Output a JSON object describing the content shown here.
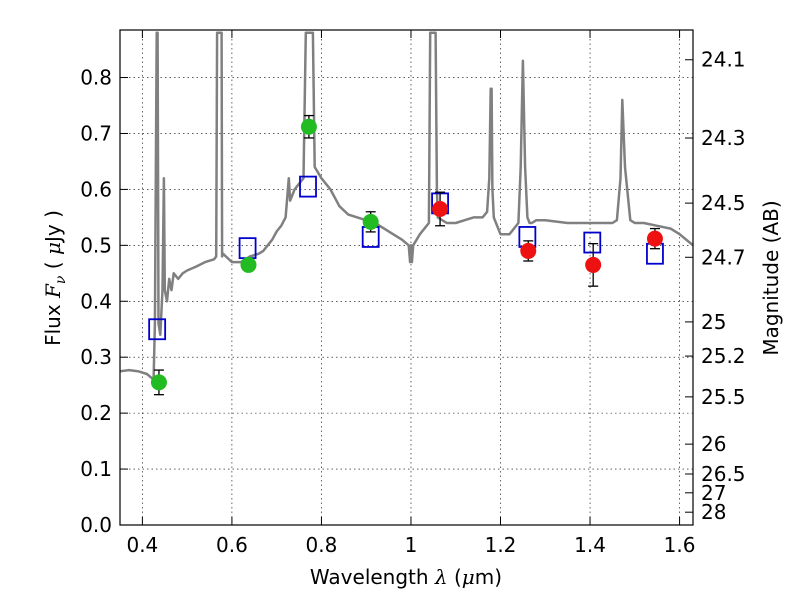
{
  "chart_data": {
    "type": "scatter",
    "xlabel": {
      "prefix": "Wavelength  ",
      "symbol": "λ",
      "suffix": " (",
      "unit_symbol": "μ",
      "unit_rest": "m)"
    },
    "ylabel": {
      "prefix": "Flux  ",
      "symbol": "F",
      "subscript": "ν",
      "suffix": "  ( ",
      "unit_symbol": "μ",
      "unit_rest": "Jy )"
    },
    "y2label": "Magnitude (AB)",
    "xlim": [
      0.35,
      1.63
    ],
    "ylim": [
      0.0,
      0.885
    ],
    "grid": true,
    "x_ticks": [
      {
        "value": 0.4,
        "label": "0.4"
      },
      {
        "value": 0.6,
        "label": "0.6"
      },
      {
        "value": 0.8,
        "label": "0.8"
      },
      {
        "value": 1.0,
        "label": "1"
      },
      {
        "value": 1.2,
        "label": "1.2"
      },
      {
        "value": 1.4,
        "label": "1.4"
      },
      {
        "value": 1.6,
        "label": "1.6"
      }
    ],
    "y_ticks": [
      {
        "value": 0.0,
        "label": "0.0"
      },
      {
        "value": 0.1,
        "label": "0.1"
      },
      {
        "value": 0.2,
        "label": "0.2"
      },
      {
        "value": 0.3,
        "label": "0.3"
      },
      {
        "value": 0.4,
        "label": "0.4"
      },
      {
        "value": 0.5,
        "label": "0.5"
      },
      {
        "value": 0.6,
        "label": "0.6"
      },
      {
        "value": 0.7,
        "label": "0.7"
      },
      {
        "value": 0.8,
        "label": "0.8"
      }
    ],
    "y2_ticks": [
      {
        "value": 24.1,
        "label": "24.1"
      },
      {
        "value": 24.3,
        "label": "24.3"
      },
      {
        "value": 24.5,
        "label": "24.5"
      },
      {
        "value": 24.7,
        "label": "24.7"
      },
      {
        "value": 25.0,
        "label": "25"
      },
      {
        "value": 25.2,
        "label": "25.2"
      },
      {
        "value": 25.5,
        "label": "25.5"
      },
      {
        "value": 26.0,
        "label": "26"
      },
      {
        "value": 26.5,
        "label": "26.5"
      },
      {
        "value": 27.0,
        "label": "27"
      },
      {
        "value": 28.0,
        "label": "28"
      }
    ],
    "model_spectrum": {
      "color": "#808080",
      "x": [
        0.35,
        0.37,
        0.39,
        0.41,
        0.425,
        0.428,
        0.432,
        0.434,
        0.436,
        0.44,
        0.445,
        0.448,
        0.45,
        0.455,
        0.46,
        0.465,
        0.47,
        0.48,
        0.49,
        0.5,
        0.52,
        0.54,
        0.56,
        0.565,
        0.567,
        0.568,
        0.569,
        0.571,
        0.573,
        0.575,
        0.576,
        0.577,
        0.578,
        0.58,
        0.6,
        0.62,
        0.64,
        0.66,
        0.67,
        0.68,
        0.69,
        0.7,
        0.71,
        0.72,
        0.725,
        0.727,
        0.73,
        0.74,
        0.76,
        0.765,
        0.767,
        0.769,
        0.771,
        0.773,
        0.775,
        0.777,
        0.779,
        0.781,
        0.785,
        0.8,
        0.82,
        0.84,
        0.86,
        0.88,
        0.9,
        0.92,
        0.94,
        0.96,
        0.98,
        0.995,
        0.998,
        1.0,
        1.002,
        1.005,
        1.02,
        1.04,
        1.043,
        1.045,
        1.05,
        1.055,
        1.058,
        1.06,
        1.08,
        1.1,
        1.12,
        1.14,
        1.16,
        1.17,
        1.175,
        1.178,
        1.18,
        1.182,
        1.185,
        1.19,
        1.2,
        1.22,
        1.24,
        1.245,
        1.25,
        1.255,
        1.26,
        1.265,
        1.27,
        1.28,
        1.3,
        1.35,
        1.4,
        1.45,
        1.46,
        1.468,
        1.472,
        1.478,
        1.49,
        1.5,
        1.52,
        1.55,
        1.58,
        1.6,
        1.63
      ],
      "y": [
        0.275,
        0.277,
        0.275,
        0.27,
        0.26,
        0.36,
        0.88,
        0.88,
        0.36,
        0.34,
        0.42,
        0.62,
        0.42,
        0.4,
        0.44,
        0.42,
        0.45,
        0.44,
        0.45,
        0.455,
        0.462,
        0.47,
        0.475,
        0.48,
        0.88,
        0.88,
        0.88,
        0.88,
        0.88,
        0.88,
        0.88,
        0.88,
        0.48,
        0.485,
        0.47,
        0.47,
        0.48,
        0.485,
        0.49,
        0.5,
        0.51,
        0.525,
        0.535,
        0.55,
        0.6,
        0.62,
        0.58,
        0.6,
        0.62,
        0.88,
        0.88,
        0.88,
        0.88,
        0.88,
        0.88,
        0.88,
        0.88,
        0.88,
        0.64,
        0.62,
        0.6,
        0.57,
        0.555,
        0.55,
        0.545,
        0.54,
        0.53,
        0.52,
        0.51,
        0.5,
        0.47,
        0.5,
        0.47,
        0.5,
        0.52,
        0.54,
        0.88,
        0.88,
        0.88,
        0.88,
        0.6,
        0.55,
        0.54,
        0.54,
        0.545,
        0.55,
        0.55,
        0.56,
        0.62,
        0.78,
        0.78,
        0.6,
        0.55,
        0.54,
        0.52,
        0.52,
        0.54,
        0.64,
        0.83,
        0.64,
        0.55,
        0.54,
        0.54,
        0.545,
        0.545,
        0.54,
        0.54,
        0.54,
        0.545,
        0.62,
        0.76,
        0.64,
        0.545,
        0.54,
        0.54,
        0.535,
        0.53,
        0.52,
        0.5
      ]
    },
    "series": [
      {
        "name": "",
        "marker": "square",
        "color": "#0000cc",
        "points": [
          {
            "x": 0.433,
            "y": 0.35
          },
          {
            "x": 0.635,
            "y": 0.495
          },
          {
            "x": 0.77,
            "y": 0.605
          },
          {
            "x": 0.91,
            "y": 0.515
          },
          {
            "x": 1.065,
            "y": 0.575
          },
          {
            "x": 1.26,
            "y": 0.515
          },
          {
            "x": 1.405,
            "y": 0.505
          },
          {
            "x": 1.545,
            "y": 0.485
          }
        ]
      },
      {
        "name": "",
        "marker": "circle",
        "color": "#22bb22",
        "points": [
          {
            "x": 0.437,
            "y": 0.255,
            "err": 0.022
          },
          {
            "x": 0.637,
            "y": 0.465,
            "err": 0.01
          },
          {
            "x": 0.772,
            "y": 0.712,
            "err": 0.02
          },
          {
            "x": 0.91,
            "y": 0.542,
            "err": 0.018
          }
        ]
      },
      {
        "name": "",
        "marker": "circle",
        "color": "#ee1111",
        "points": [
          {
            "x": 1.065,
            "y": 0.565,
            "err": 0.03
          },
          {
            "x": 1.262,
            "y": 0.49,
            "err": 0.018
          },
          {
            "x": 1.407,
            "y": 0.465,
            "err": 0.038
          },
          {
            "x": 1.545,
            "y": 0.512,
            "err": 0.018
          }
        ]
      }
    ]
  }
}
